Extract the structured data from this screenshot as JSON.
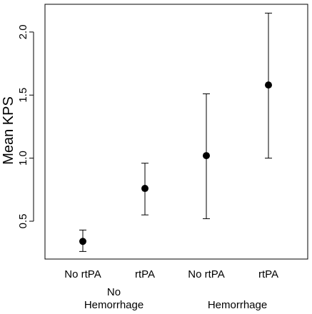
{
  "chart_data": {
    "type": "scatter",
    "title": "",
    "xlabel": "",
    "ylabel": "Mean KPS",
    "ylim": [
      0.2,
      2.22
    ],
    "yticks": [
      "0.5",
      "1.0",
      "1.5",
      "2.0"
    ],
    "categories": [
      "No rtPA",
      "rtPA",
      "No rtPA",
      "rtPA"
    ],
    "groups": [
      {
        "label_lines": [
          "No",
          "Hemorrhage"
        ],
        "span": [
          0,
          1
        ]
      },
      {
        "label_lines": [
          "Hemorrhage"
        ],
        "span": [
          2,
          3
        ]
      }
    ],
    "series": [
      {
        "values": [
          0.34,
          0.76,
          1.02,
          1.58
        ],
        "lower": [
          0.26,
          0.55,
          0.52,
          1.0
        ],
        "upper": [
          0.43,
          0.96,
          1.51,
          2.15
        ]
      }
    ],
    "point_color": "#000000",
    "grid": false,
    "legend": "none"
  }
}
